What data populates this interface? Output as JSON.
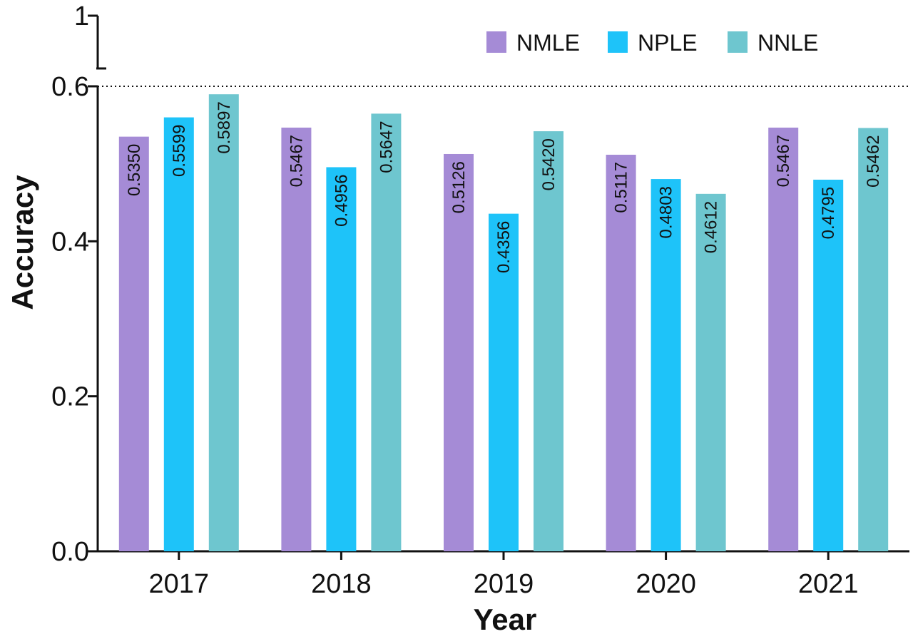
{
  "chart_data": {
    "type": "bar",
    "title": "",
    "xlabel": "Year",
    "ylabel": "Accuracy",
    "categories": [
      "2017",
      "2018",
      "2019",
      "2020",
      "2021"
    ],
    "series": [
      {
        "name": "NMLE",
        "color": "#A58BD6",
        "values": [
          0.535,
          0.5467,
          0.5126,
          0.5117,
          0.5467
        ],
        "labels": [
          "0.5350",
          "0.5467",
          "0.5126",
          "0.5117",
          "0.5467"
        ]
      },
      {
        "name": "NPLE",
        "color": "#1EC3F9",
        "values": [
          0.5599,
          0.4956,
          0.4356,
          0.4803,
          0.4795
        ],
        "labels": [
          "0.5599",
          "0.4956",
          "0.4356",
          "0.4803",
          "0.4795"
        ]
      },
      {
        "name": "NNLE",
        "color": "#6EC6CF",
        "values": [
          0.5897,
          0.5647,
          0.542,
          0.4612,
          0.5462
        ],
        "labels": [
          "0.5897",
          "0.5647",
          "0.5420",
          "0.4612",
          "0.5462"
        ]
      }
    ],
    "ylim": [
      0,
      1
    ],
    "y_axis_break": [
      0.6,
      1
    ],
    "yticks": [
      0,
      0.2,
      0.4,
      0.6,
      1
    ],
    "ytick_labels": [
      "0.0",
      "0.2",
      "0.4",
      "0.6",
      "1"
    ],
    "reference_line": 0.6,
    "grid": false,
    "legend_position": "top-right"
  }
}
